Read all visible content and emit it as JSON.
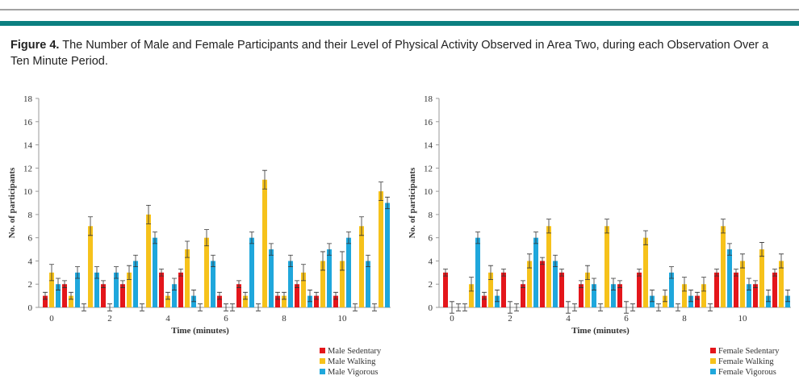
{
  "caption": {
    "label": "Figure 4.",
    "text": "The Number of Male and Female Participants and their Level of Physical Activity Observed in Area Two, during each Observation Over a Ten Minute Period."
  },
  "chart_data": [
    {
      "type": "bar",
      "xlabel": "Time (minutes)",
      "ylabel": "No. of participants",
      "categories": [
        "0",
        null,
        null,
        "2",
        null,
        null,
        "4",
        null,
        null,
        "6",
        null,
        null,
        "8",
        null,
        null,
        "10",
        null,
        null
      ],
      "ylim": [
        0,
        18
      ],
      "yticks": [
        0,
        2,
        4,
        6,
        8,
        10,
        12,
        14,
        16,
        18
      ],
      "series": [
        {
          "name": "Male Sedentary",
          "color": "#e4161b",
          "values": [
            1,
            2,
            0,
            2,
            2,
            0,
            3,
            3,
            0,
            1,
            2,
            0,
            1,
            2,
            1,
            1,
            0,
            0
          ],
          "errors": [
            0.3,
            0.3,
            0.3,
            0.3,
            0.3,
            0.3,
            0.3,
            0.3,
            0.3,
            0.3,
            0.3,
            0.3,
            0.3,
            0.3,
            0.3,
            0.3,
            0.3,
            0.3
          ]
        },
        {
          "name": "Male Walking",
          "color": "#f6c21b",
          "values": [
            3,
            1,
            7,
            0,
            3,
            8,
            1,
            5,
            6,
            0,
            1,
            11,
            1,
            3,
            4,
            4,
            7,
            10
          ],
          "errors": [
            0.7,
            0.3,
            0.8,
            0.3,
            0.6,
            0.8,
            0.3,
            0.7,
            0.7,
            0.3,
            0.3,
            0.8,
            0.3,
            0.7,
            0.8,
            0.8,
            0.8,
            0.8
          ]
        },
        {
          "name": "Male Vigorous",
          "color": "#1fa7dc",
          "values": [
            2,
            3,
            3,
            3,
            4,
            6,
            2,
            1,
            4,
            0,
            6,
            5,
            4,
            1,
            5,
            6,
            4,
            9
          ],
          "errors": [
            0.5,
            0.5,
            0.5,
            0.5,
            0.5,
            0.5,
            0.5,
            0.5,
            0.5,
            0.3,
            0.5,
            0.5,
            0.5,
            0.5,
            0.5,
            0.5,
            0.5,
            0.5
          ]
        }
      ]
    },
    {
      "type": "bar",
      "xlabel": "Time (minutes)",
      "ylabel": "No. of participants",
      "categories": [
        "0",
        null,
        null,
        "2",
        null,
        null,
        "4",
        null,
        null,
        "6",
        null,
        null,
        "8",
        null,
        null,
        "10",
        null,
        null
      ],
      "ylim": [
        0,
        18
      ],
      "yticks": [
        0,
        2,
        4,
        6,
        8,
        10,
        12,
        14,
        16,
        18
      ],
      "series": [
        {
          "name": "Female Sedentary",
          "color": "#e4161b",
          "values": [
            3,
            0,
            1,
            3,
            2,
            4,
            3,
            2,
            0,
            2,
            3,
            0,
            0,
            1,
            3,
            3,
            2,
            3
          ],
          "errors": [
            0.3,
            0.3,
            0.3,
            0.3,
            0.3,
            0.3,
            0.3,
            0.3,
            0.3,
            0.3,
            0.3,
            0.3,
            0.3,
            0.3,
            0.3,
            0.3,
            0.3,
            0.3
          ]
        },
        {
          "name": "Female Walking",
          "color": "#f6c21b",
          "values": [
            0,
            2,
            3,
            0,
            4,
            7,
            0,
            3,
            7,
            0,
            6,
            1,
            2,
            2,
            7,
            4,
            5,
            4
          ],
          "errors": [
            0.5,
            0.6,
            0.6,
            0.5,
            0.6,
            0.6,
            0.5,
            0.6,
            0.6,
            0.5,
            0.6,
            0.5,
            0.6,
            0.6,
            0.6,
            0.6,
            0.6,
            0.6
          ]
        },
        {
          "name": "Female Vigorous",
          "color": "#1fa7dc",
          "values": [
            0,
            6,
            1,
            0,
            6,
            4,
            0,
            2,
            2,
            0,
            1,
            3,
            1,
            0,
            5,
            2,
            1,
            1
          ],
          "errors": [
            0.3,
            0.5,
            0.5,
            0.3,
            0.5,
            0.5,
            0.3,
            0.5,
            0.5,
            0.3,
            0.5,
            0.5,
            0.5,
            0.3,
            0.5,
            0.5,
            0.5,
            0.5
          ]
        }
      ]
    }
  ]
}
